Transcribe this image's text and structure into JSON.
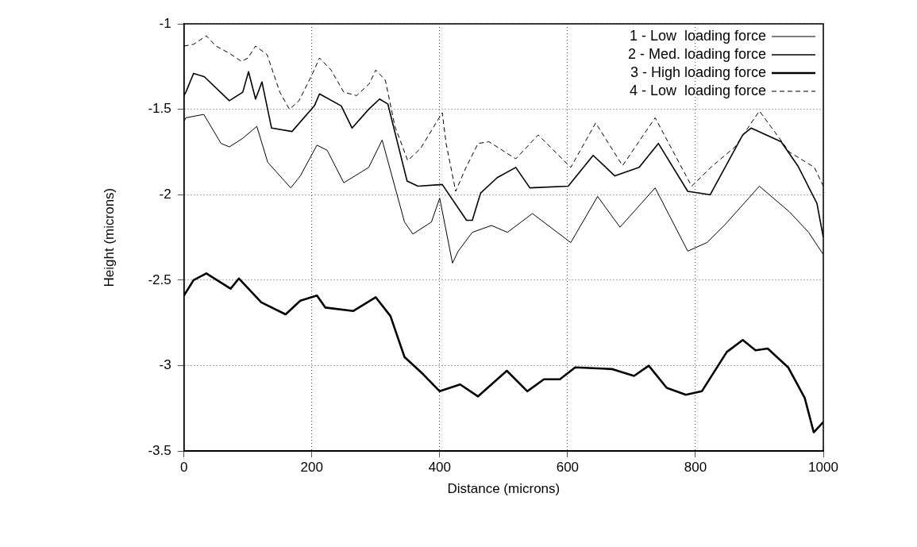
{
  "chart_data": {
    "type": "line",
    "xlabel": "Distance (microns)",
    "ylabel": "Height (microns)",
    "xlim": [
      0,
      1000
    ],
    "xticks": [
      0,
      200,
      400,
      600,
      800,
      1000
    ],
    "ylim": [
      -3.5,
      -1
    ],
    "yticks": [
      -3.5,
      -3,
      -2.5,
      -2,
      -1.5,
      -1
    ],
    "grid": true,
    "legend": "top right",
    "marker": "none",
    "line_style": "solid",
    "series": [
      {
        "name": "1 - Low  loading force",
        "color": "#000000",
        "x": [
          0,
          3,
          31,
          58,
          71,
          92,
          114,
          131,
          167,
          182,
          208,
          224,
          250,
          289,
          310,
          345,
          358,
          387,
          400,
          420,
          429,
          451,
          481,
          506,
          545,
          605,
          647,
          682,
          737,
          788,
          818,
          845,
          900,
          947,
          977,
          1000
        ],
        "values": [
          -1.57,
          -1.55,
          -1.53,
          -1.7,
          -1.72,
          -1.67,
          -1.6,
          -1.81,
          -1.96,
          -1.89,
          -1.71,
          -1.74,
          -1.93,
          -1.84,
          -1.68,
          -2.16,
          -2.23,
          -2.16,
          -2.02,
          -2.4,
          -2.33,
          -2.22,
          -2.18,
          -2.22,
          -2.11,
          -2.28,
          -2.01,
          -2.19,
          -1.96,
          -2.33,
          -2.28,
          -2.18,
          -1.95,
          -2.1,
          -2.22,
          -2.35
        ]
      },
      {
        "name": "2 - Med. loading force",
        "color": "#000000",
        "x": [
          0,
          3,
          15,
          32,
          71,
          92,
          101,
          112,
          122,
          137,
          169,
          204,
          212,
          246,
          263,
          289,
          306,
          319,
          349,
          366,
          404,
          442,
          451,
          464,
          490,
          519,
          541,
          601,
          640,
          674,
          712,
          742,
          788,
          823,
          874,
          887,
          934,
          960,
          990,
          1000
        ],
        "values": [
          -1.42,
          -1.4,
          -1.29,
          -1.31,
          -1.45,
          -1.4,
          -1.28,
          -1.44,
          -1.34,
          -1.61,
          -1.63,
          -1.48,
          -1.41,
          -1.48,
          -1.61,
          -1.5,
          -1.44,
          -1.47,
          -1.92,
          -1.95,
          -1.94,
          -2.15,
          -2.15,
          -1.99,
          -1.9,
          -1.84,
          -1.96,
          -1.95,
          -1.77,
          -1.89,
          -1.84,
          -1.7,
          -1.98,
          -2.0,
          -1.65,
          -1.61,
          -1.69,
          -1.83,
          -2.05,
          -2.25
        ]
      },
      {
        "name": "3 - High loading force",
        "color": "#000000",
        "x": [
          0,
          15,
          35,
          73,
          86,
          121,
          159,
          182,
          208,
          221,
          265,
          300,
          323,
          345,
          374,
          400,
          432,
          460,
          505,
          537,
          563,
          588,
          612,
          669,
          704,
          727,
          755,
          785,
          810,
          849,
          874,
          894,
          913,
          945,
          971,
          985,
          1000
        ],
        "values": [
          -2.59,
          -2.5,
          -2.46,
          -2.55,
          -2.49,
          -2.63,
          -2.7,
          -2.62,
          -2.59,
          -2.66,
          -2.68,
          -2.6,
          -2.71,
          -2.95,
          -3.05,
          -3.15,
          -3.11,
          -3.18,
          -3.03,
          -3.15,
          -3.08,
          -3.08,
          -3.01,
          -3.02,
          -3.06,
          -3.0,
          -3.13,
          -3.17,
          -3.15,
          -2.92,
          -2.85,
          -2.91,
          -2.9,
          -3.01,
          -3.19,
          -3.39,
          -3.33
        ]
      },
      {
        "name": "4 - Low  loading force",
        "color": "#000000",
        "line_style": "dashed",
        "x": [
          0,
          15,
          35,
          50,
          70,
          90,
          100,
          112,
          130,
          150,
          165,
          180,
          200,
          212,
          230,
          250,
          270,
          290,
          300,
          315,
          330,
          350,
          370,
          404,
          410,
          425,
          440,
          460,
          477,
          519,
          554,
          605,
          644,
          686,
          737,
          794,
          827,
          862,
          900,
          947,
          986,
          1000
        ],
        "values": [
          -1.13,
          -1.12,
          -1.07,
          -1.13,
          -1.17,
          -1.22,
          -1.2,
          -1.13,
          -1.18,
          -1.4,
          -1.5,
          -1.45,
          -1.3,
          -1.2,
          -1.27,
          -1.4,
          -1.42,
          -1.35,
          -1.27,
          -1.33,
          -1.6,
          -1.8,
          -1.73,
          -1.52,
          -1.7,
          -1.98,
          -1.85,
          -1.7,
          -1.69,
          -1.79,
          -1.65,
          -1.84,
          -1.58,
          -1.83,
          -1.55,
          -1.95,
          -1.83,
          -1.72,
          -1.51,
          -1.75,
          -1.84,
          -1.95
        ]
      }
    ]
  }
}
